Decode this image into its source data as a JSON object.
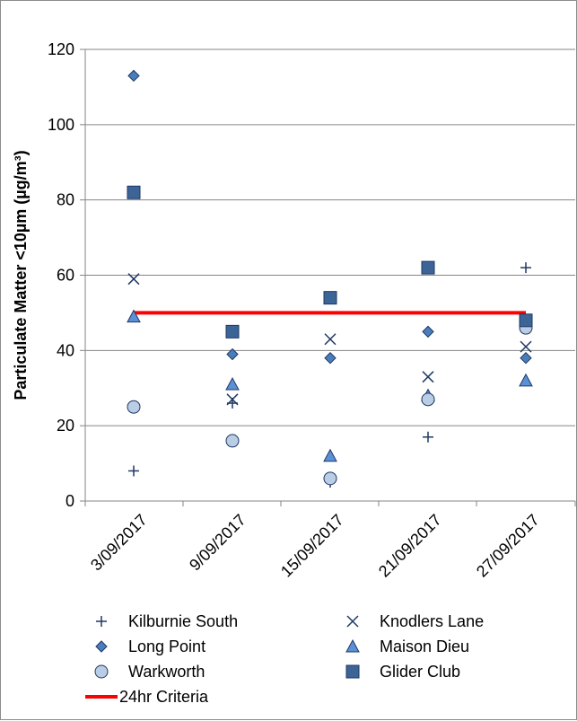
{
  "chart_data": {
    "type": "scatter",
    "title": "",
    "xlabel": "",
    "ylabel": "Particulate Matter <10µm (µg/m³)",
    "ylim": [
      0,
      120
    ],
    "yticks": [
      0,
      20,
      40,
      60,
      80,
      100,
      120
    ],
    "categories": [
      "3/09/2017",
      "9/09/2017",
      "15/09/2017",
      "21/09/2017",
      "27/09/2017"
    ],
    "grid": "horizontal",
    "legend_position": "bottom",
    "series": [
      {
        "name": "Kilburnie South",
        "marker": "plus",
        "color": "#1f3864",
        "values": [
          8,
          26,
          5,
          17,
          62
        ]
      },
      {
        "name": "Knodlers Lane",
        "marker": "x",
        "color": "#1f3864",
        "values": [
          59,
          27,
          43,
          33,
          41
        ]
      },
      {
        "name": "Long Point",
        "marker": "diamond",
        "color": "#4a7ebb",
        "values": [
          113,
          39,
          38,
          45,
          38
        ]
      },
      {
        "name": "Maison Dieu",
        "marker": "triangle",
        "color": "#5b8fd6",
        "values": [
          49,
          31,
          12,
          28,
          32
        ]
      },
      {
        "name": "Warkworth",
        "marker": "circle",
        "color": "#b9cde5",
        "values": [
          25,
          16,
          6,
          27,
          46
        ]
      },
      {
        "name": "Glider Club",
        "marker": "square",
        "color": "#3c6496",
        "values": [
          82,
          45,
          54,
          62,
          48
        ]
      }
    ],
    "reference_line": {
      "name": "24hr Criteria",
      "value": 50,
      "color": "#ff0000"
    }
  }
}
